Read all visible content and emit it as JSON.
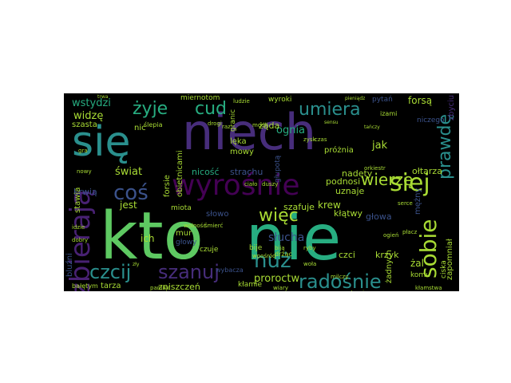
{
  "palette": {
    "teal": "#2a8f8d",
    "purple": "#472d7b",
    "violet": "#482173",
    "blue": "#3b528b",
    "green": "#5ec962",
    "lime": "#a8db34",
    "sea": "#27ad81",
    "yellow": "#e3e418",
    "deep": "#440154"
  },
  "words": [
    {
      "text": "kto",
      "color": "green"
    },
    {
      "text": "nie",
      "color": "sea"
    },
    {
      "text": "niech",
      "color": "purple"
    },
    {
      "text": "się",
      "color": "teal"
    },
    {
      "text": "wyrośnie",
      "color": "deep"
    },
    {
      "text": "zbierają",
      "color": "violet"
    },
    {
      "text": "sobie",
      "color": "lime"
    },
    {
      "text": "siej",
      "color": "lime"
    },
    {
      "text": "coś",
      "color": "blue"
    },
    {
      "text": "umiera",
      "color": "teal"
    },
    {
      "text": "prawdę",
      "color": "teal"
    },
    {
      "text": "nuż",
      "color": "teal"
    },
    {
      "text": "radośnie",
      "color": "teal"
    },
    {
      "text": "czcij",
      "color": "teal"
    },
    {
      "text": "szanuj",
      "color": "purple"
    },
    {
      "text": "więc",
      "color": "lime"
    },
    {
      "text": "żyje",
      "color": "sea"
    },
    {
      "text": "cud",
      "color": "sea"
    },
    {
      "text": "wierzę",
      "color": "lime"
    },
    {
      "text": "wstydzi",
      "color": "sea"
    },
    {
      "text": "widzę",
      "color": "lime"
    },
    {
      "text": "jak",
      "color": "lime"
    },
    {
      "text": "świat",
      "color": "lime"
    },
    {
      "text": "proroctw",
      "color": "lime"
    },
    {
      "text": "słucha",
      "color": "blue"
    },
    {
      "text": "ognia",
      "color": "sea"
    },
    {
      "text": "krew",
      "color": "lime"
    },
    {
      "text": "jest",
      "color": "lime"
    },
    {
      "text": "krwią",
      "color": "blue"
    },
    {
      "text": "ich",
      "color": "lime"
    },
    {
      "text": "forsą",
      "color": "lime"
    },
    {
      "text": "żal",
      "color": "lime"
    },
    {
      "text": "nicość",
      "color": "sea"
    },
    {
      "text": "czci",
      "color": "lime"
    },
    {
      "text": "głowa",
      "color": "blue"
    },
    {
      "text": "krzyk",
      "color": "lime"
    },
    {
      "text": "ołtarza",
      "color": "lime"
    },
    {
      "text": "nadęty",
      "color": "lime"
    },
    {
      "text": "podnosi",
      "color": "lime"
    },
    {
      "text": "uznaje",
      "color": "lime"
    },
    {
      "text": "kłątwy",
      "color": "lime"
    },
    {
      "text": "strachu",
      "color": "blue"
    },
    {
      "text": "forsie",
      "color": "lime"
    },
    {
      "text": "obietnicami",
      "color": "lime"
    },
    {
      "text": "zbyciu",
      "color": "purple"
    },
    {
      "text": "żąda",
      "color": "lime"
    },
    {
      "text": "miernotom",
      "color": "lime"
    },
    {
      "text": "szasta",
      "color": "lime"
    },
    {
      "text": "niczego",
      "color": "blue"
    },
    {
      "text": "zniszczeń",
      "color": "lime"
    },
    {
      "text": "tarza",
      "color": "lime"
    },
    {
      "text": "zapomniał",
      "color": "lime"
    },
    {
      "text": "mur",
      "color": "lime"
    },
    {
      "text": "komu",
      "color": "lime"
    },
    {
      "text": "ciska",
      "color": "lime"
    },
    {
      "text": "bluźni",
      "color": "blue"
    },
    {
      "text": "żadnych",
      "color": "lime"
    },
    {
      "text": "stawia",
      "color": "lime"
    },
    {
      "text": "lęka",
      "color": "lime"
    },
    {
      "text": "mowy",
      "color": "lime"
    },
    {
      "text": "próżnia",
      "color": "lime"
    },
    {
      "text": "wyroki",
      "color": "lime"
    },
    {
      "text": "pytań",
      "color": "blue"
    },
    {
      "text": "izami",
      "color": "lime"
    },
    {
      "text": "granic",
      "color": "lime"
    },
    {
      "text": "nic",
      "color": "lime"
    },
    {
      "text": "głupotą",
      "color": "blue"
    },
    {
      "text": "ślepia",
      "color": "lime"
    },
    {
      "text": "miota",
      "color": "lime"
    },
    {
      "text": "głowy",
      "color": "blue"
    },
    {
      "text": "czuje",
      "color": "lime"
    },
    {
      "text": "bije",
      "color": "lime"
    },
    {
      "text": "szafuje",
      "color": "lime"
    },
    {
      "text": "słowo",
      "color": "blue"
    },
    {
      "text": "mężny",
      "color": "blue"
    },
    {
      "text": "wybacza",
      "color": "blue"
    },
    {
      "text": "przeklina",
      "color": "blue"
    },
    {
      "text": "bałętym",
      "color": "lime"
    },
    {
      "text": "kłamie",
      "color": "lime"
    },
    {
      "text": "drżąc",
      "color": "lime"
    },
    {
      "text": "orkiestr",
      "color": "lime"
    },
    {
      "text": "zysk",
      "color": "lime"
    },
    {
      "text": "czas",
      "color": "lime"
    },
    {
      "text": "wpośród",
      "color": "lime"
    },
    {
      "text": "biją",
      "color": "lime"
    },
    {
      "text": "ryby",
      "color": "lime"
    },
    {
      "text": "wiary",
      "color": "lime"
    },
    {
      "text": "gra",
      "color": "lime"
    },
    {
      "text": "trwa",
      "color": "lime"
    },
    {
      "text": "pamięć",
      "color": "lime"
    },
    {
      "text": "modli",
      "color": "lime"
    },
    {
      "text": "ludzie",
      "color": "lime"
    },
    {
      "text": "pieniądz",
      "color": "lime"
    },
    {
      "text": "sensu",
      "color": "lime"
    },
    {
      "text": "tańczy",
      "color": "lime"
    },
    {
      "text": "ciało",
      "color": "lime"
    },
    {
      "text": "duszy",
      "color": "lime"
    },
    {
      "text": "wolność",
      "color": "lime"
    },
    {
      "text": "śmierć",
      "color": "lime"
    },
    {
      "text": "ogień",
      "color": "lime"
    },
    {
      "text": "serce",
      "color": "lime"
    },
    {
      "text": "idzie",
      "color": "lime"
    },
    {
      "text": "dobry",
      "color": "lime"
    },
    {
      "text": "zły",
      "color": "lime"
    },
    {
      "text": "płacz",
      "color": "lime"
    },
    {
      "text": "woła",
      "color": "lime"
    },
    {
      "text": "milczy",
      "color": "lime"
    },
    {
      "text": "strzeże",
      "color": "lime"
    },
    {
      "text": "nowy",
      "color": "lime"
    },
    {
      "text": "kłamstwa",
      "color": "lime"
    },
    {
      "text": "raz",
      "color": "lime"
    },
    {
      "text": "drogi",
      "color": "lime"
    }
  ]
}
